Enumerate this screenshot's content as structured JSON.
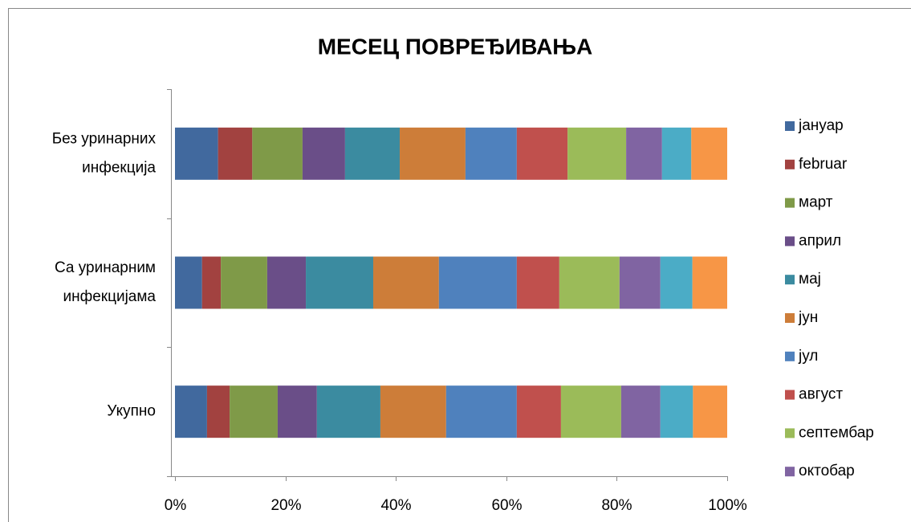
{
  "chart_data": {
    "type": "stacked_barh",
    "title": "МЕСЕЦ ПОВРЕЂИВАЊА",
    "categories": [
      "Без уринарних инфекција",
      "Са уринарним инфекцијама",
      "Укупно"
    ],
    "series": [
      {
        "name": "јануар",
        "color": "#41699e",
        "values": [
          7.8,
          4.9,
          5.8
        ]
      },
      {
        "name": "februar",
        "color": "#a24240",
        "values": [
          6.2,
          3.4,
          4.1
        ]
      },
      {
        "name": "март",
        "color": "#7f9a48",
        "values": [
          9.1,
          8.4,
          8.7
        ]
      },
      {
        "name": "април",
        "color": "#6a4e88",
        "values": [
          7.7,
          7.0,
          7.1
        ]
      },
      {
        "name": "мај",
        "color": "#3b8ba0",
        "values": [
          9.9,
          12.2,
          11.5
        ]
      },
      {
        "name": "јун",
        "color": "#cd7d39",
        "values": [
          11.9,
          11.9,
          11.9
        ]
      },
      {
        "name": "јул",
        "color": "#4f81bd",
        "values": [
          9.3,
          14.1,
          12.8
        ]
      },
      {
        "name": "август",
        "color": "#c0504d",
        "values": [
          9.2,
          7.7,
          8.0
        ]
      },
      {
        "name": "септембар",
        "color": "#9bbb59",
        "values": [
          10.6,
          10.9,
          10.9
        ]
      },
      {
        "name": "октобар",
        "color": "#8064a2",
        "values": [
          6.5,
          7.4,
          7.1
        ]
      },
      {
        "color": "#4bacc6",
        "values": [
          5.3,
          5.8,
          5.9
        ]
      },
      {
        "color": "#f79646",
        "values": [
          6.5,
          6.3,
          6.2
        ]
      }
    ],
    "xlim": [
      0,
      100
    ],
    "xticks": [
      {
        "value": 0,
        "label": "0%"
      },
      {
        "value": 20,
        "label": "20%"
      },
      {
        "value": 40,
        "label": "40%"
      },
      {
        "value": 60,
        "label": "60%"
      },
      {
        "value": 80,
        "label": "80%"
      },
      {
        "value": 100,
        "label": "100%"
      }
    ],
    "legend": "right"
  }
}
